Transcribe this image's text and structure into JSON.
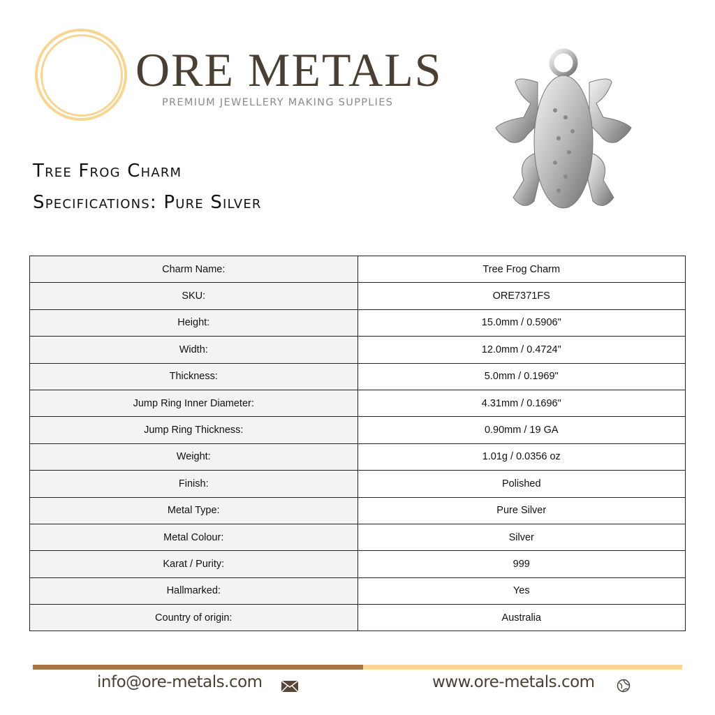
{
  "brand": {
    "name": "ORE METALS",
    "tagline": "PREMIUM JEWELLERY MAKING SUPPLIES",
    "ring_color": "#f7d594",
    "text_color": "#4a3f33"
  },
  "product": {
    "title": "Tree Frog Charm",
    "subtitle": "Specifications: Pure Silver"
  },
  "specs": [
    {
      "label": "Charm Name:",
      "value": "Tree Frog Charm"
    },
    {
      "label": "SKU:",
      "value": "ORE7371FS"
    },
    {
      "label": "Height:",
      "value": "15.0mm / 0.5906\""
    },
    {
      "label": "Width:",
      "value": "12.0mm / 0.4724\""
    },
    {
      "label": "Thickness:",
      "value": "5.0mm / 0.1969\""
    },
    {
      "label": "Jump Ring Inner Diameter:",
      "value": "4.31mm / 0.1696\""
    },
    {
      "label": "Jump Ring Thickness:",
      "value": "0.90mm / 19 GA"
    },
    {
      "label": "Weight:",
      "value": "1.01g / 0.0356 oz"
    },
    {
      "label": "Finish:",
      "value": "Polished"
    },
    {
      "label": "Metal Type:",
      "value": "Pure Silver"
    },
    {
      "label": "Metal Colour:",
      "value": "Silver"
    },
    {
      "label": "Karat / Purity:",
      "value": "999"
    },
    {
      "label": "Hallmarked:",
      "value": "Yes"
    },
    {
      "label": "Country of origin:",
      "value": "Australia"
    }
  ],
  "footer": {
    "email": "info@ore-metals.com",
    "email_icon": "envelope-icon",
    "website": "www.ore-metals.com",
    "website_icon": "globe-icon",
    "bar_colors": [
      "#a87545",
      "#fdd592"
    ]
  }
}
